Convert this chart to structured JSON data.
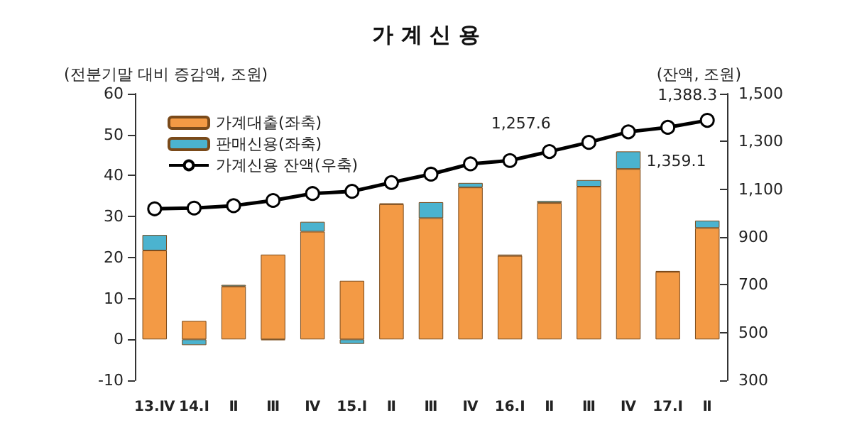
{
  "chart_data": {
    "type": "bar",
    "title": "가 계 신 용",
    "ylabel": "(전분기말 대비 증감액, 조원)",
    "y2label": "(잔액, 조원)",
    "categories": [
      "13.Ⅳ",
      "14.Ⅰ",
      "Ⅱ",
      "Ⅲ",
      "Ⅳ",
      "15.Ⅰ",
      "Ⅱ",
      "Ⅲ",
      "Ⅳ",
      "16.Ⅰ",
      "Ⅱ",
      "Ⅲ",
      "Ⅳ",
      "17.Ⅰ",
      "Ⅱ"
    ],
    "stacked": true,
    "series": [
      {
        "name": "가계대출(좌축)",
        "color": "#f39a45",
        "values": [
          21.7,
          4.5,
          12.9,
          20.7,
          26.3,
          14.3,
          33.0,
          29.6,
          37.1,
          20.4,
          33.3,
          37.3,
          41.6,
          16.5,
          27.2
        ]
      },
      {
        "name": "판매신용(좌축)",
        "color": "#4bb3cf",
        "values": [
          3.8,
          -1.4,
          0.4,
          -0.2,
          2.4,
          -1.1,
          0.2,
          3.9,
          1.1,
          0.3,
          0.5,
          1.6,
          4.3,
          0.2,
          1.8
        ]
      },
      {
        "name": "가계신용 잔액(우축)",
        "type": "line",
        "axis": "y2",
        "color": "#000000",
        "marker": "circle",
        "values": [
          1018,
          1021,
          1031,
          1053,
          1082,
          1091,
          1128,
          1163,
          1206,
          1220,
          1257.6,
          1296,
          1340,
          1359.1,
          1388.3
        ],
        "value_labels": [
          null,
          null,
          null,
          null,
          null,
          null,
          null,
          null,
          null,
          null,
          "1,257.6",
          null,
          null,
          "1,359.1",
          "1,388.3"
        ]
      }
    ],
    "ylim": [
      -10,
      60
    ],
    "yticks": [
      -10,
      0,
      10,
      20,
      30,
      40,
      50,
      60
    ],
    "y2lim": [
      300,
      1500
    ],
    "y2ticks": [
      300,
      500,
      700,
      900,
      {
        "value": 1100,
        "label": "1,100"
      },
      {
        "value": 1300,
        "label": "1,300"
      },
      {
        "value": 1500,
        "label": "1,500"
      }
    ],
    "grid": false,
    "legend": "top left"
  }
}
